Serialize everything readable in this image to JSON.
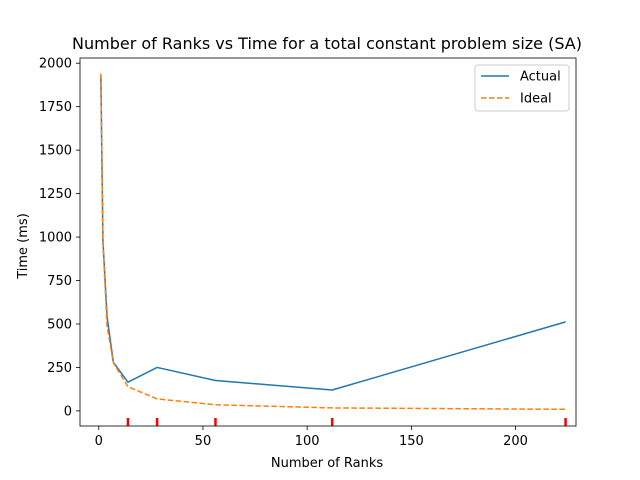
{
  "chart_data": {
    "type": "line",
    "title": "Number of Ranks vs Time for a total constant problem size (SA)",
    "xlabel": "Number of Ranks",
    "ylabel": "Time (ms)",
    "xlim": [
      -9,
      229
    ],
    "ylim": [
      -87,
      2030
    ],
    "xticks": [
      0,
      50,
      100,
      150,
      200
    ],
    "yticks": [
      0,
      250,
      500,
      750,
      1000,
      1250,
      1500,
      1750,
      2000
    ],
    "grid": false,
    "legend_position": "top-right",
    "highlight_ticks": [
      14,
      28,
      56,
      112,
      224
    ],
    "highlight_color": "#ff0000",
    "series": [
      {
        "name": "Actual",
        "color": "#1f77b4",
        "style": "solid",
        "x": [
          1,
          2,
          4,
          7,
          14,
          28,
          56,
          112,
          224
        ],
        "y": [
          1930,
          980,
          540,
          280,
          165,
          250,
          175,
          120,
          512
        ]
      },
      {
        "name": "Ideal",
        "color": "#ff7f0e",
        "style": "dashed",
        "x": [
          1,
          2,
          4,
          7,
          14,
          28,
          56,
          112,
          224
        ],
        "y": [
          1940,
          970,
          485,
          277,
          139,
          69,
          35,
          17,
          9
        ]
      }
    ]
  }
}
